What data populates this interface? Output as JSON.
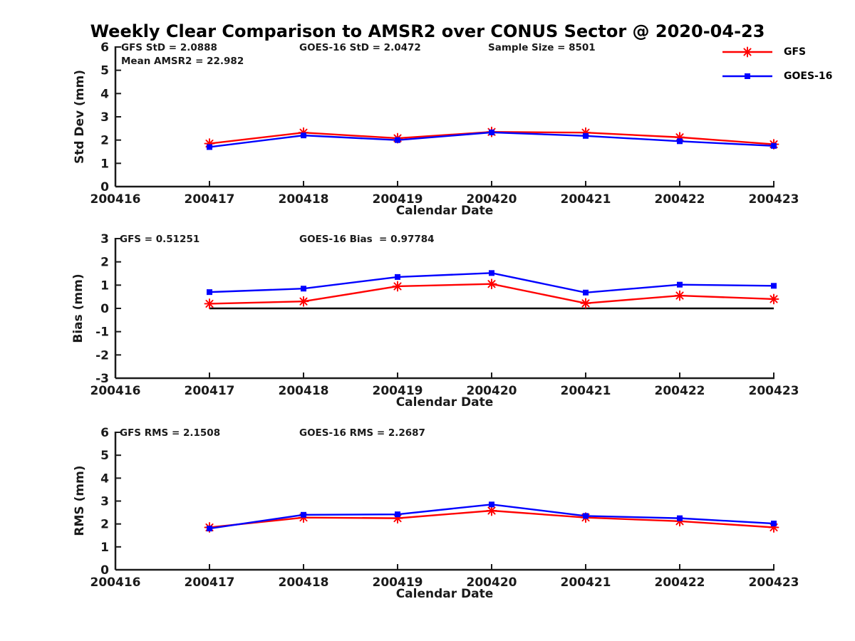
{
  "title": "Weekly Clear Comparison to AMSR2 over CONUS Sector @ 2020-04-23",
  "legend": {
    "items": [
      {
        "label": "GFS",
        "color": "#ff0000",
        "marker": "asterisk"
      },
      {
        "label": "GOES-16",
        "color": "#0000ff",
        "marker": "square"
      }
    ]
  },
  "chart_data": [
    {
      "id": "std-dev",
      "type": "line",
      "title": "",
      "x": [
        200417,
        200418,
        200419,
        200420,
        200421,
        200422,
        200423
      ],
      "xlim": [
        200416,
        200423
      ],
      "xticks": [
        200416,
        200417,
        200418,
        200419,
        200420,
        200421,
        200422,
        200423
      ],
      "xticklabels": [
        "200416",
        "200417",
        "200418",
        "200419",
        "200420",
        "200421",
        "200422",
        "200423"
      ],
      "xlabel": "Calendar Date",
      "ylabel": "Std Dev (mm)",
      "ylim": [
        0,
        6
      ],
      "yticks": [
        0,
        1,
        2,
        3,
        4,
        5,
        6
      ],
      "grid": false,
      "zero_line": false,
      "series": [
        {
          "name": "GFS",
          "color": "#ff0000",
          "marker": "asterisk",
          "values": [
            1.85,
            2.32,
            2.08,
            2.35,
            2.32,
            2.12,
            1.82
          ]
        },
        {
          "name": "GOES-16",
          "color": "#0000ff",
          "marker": "square",
          "values": [
            1.7,
            2.2,
            2.0,
            2.33,
            2.18,
            1.95,
            1.75
          ]
        }
      ],
      "annotations": {
        "left": "GFS StD = 2.0888",
        "left2": "Mean AMSR2 = 22.982",
        "mid": "GOES-16 StD = 2.0472",
        "right": "Sample Size = 8501"
      }
    },
    {
      "id": "bias",
      "type": "line",
      "title": "",
      "x": [
        200417,
        200418,
        200419,
        200420,
        200421,
        200422,
        200423
      ],
      "xlim": [
        200416,
        200423
      ],
      "xticks": [
        200416,
        200417,
        200418,
        200419,
        200420,
        200421,
        200422,
        200423
      ],
      "xticklabels": [
        "200416",
        "200417",
        "200418",
        "200419",
        "200420",
        "200421",
        "200422",
        "200423"
      ],
      "xlabel": "Calendar Date",
      "ylabel": "Bias (mm)",
      "ylim": [
        -3,
        3
      ],
      "yticks": [
        -3,
        -2,
        -1,
        0,
        1,
        2,
        3
      ],
      "grid": false,
      "zero_line": true,
      "series": [
        {
          "name": "GFS",
          "color": "#ff0000",
          "marker": "asterisk",
          "values": [
            0.2,
            0.3,
            0.95,
            1.05,
            0.22,
            0.55,
            0.4
          ]
        },
        {
          "name": "GOES-16",
          "color": "#0000ff",
          "marker": "square",
          "values": [
            0.7,
            0.85,
            1.35,
            1.52,
            0.68,
            1.02,
            0.97
          ]
        }
      ],
      "annotations": {
        "left": "GFS = 0.51251",
        "mid": "GOES-16 Bias  = 0.97784"
      }
    },
    {
      "id": "rms",
      "type": "line",
      "title": "",
      "x": [
        200417,
        200418,
        200419,
        200420,
        200421,
        200422,
        200423
      ],
      "xlim": [
        200416,
        200423
      ],
      "xticks": [
        200416,
        200417,
        200418,
        200419,
        200420,
        200421,
        200422,
        200423
      ],
      "xticklabels": [
        "200416",
        "200417",
        "200418",
        "200419",
        "200420",
        "200421",
        "200422",
        "200423"
      ],
      "xlabel": "Calendar Date",
      "ylabel": "RMS (mm)",
      "ylim": [
        0,
        6
      ],
      "yticks": [
        0,
        1,
        2,
        3,
        4,
        5,
        6
      ],
      "grid": false,
      "zero_line": false,
      "series": [
        {
          "name": "GFS",
          "color": "#ff0000",
          "marker": "asterisk",
          "values": [
            1.85,
            2.28,
            2.25,
            2.58,
            2.28,
            2.12,
            1.85
          ]
        },
        {
          "name": "GOES-16",
          "color": "#0000ff",
          "marker": "square",
          "values": [
            1.8,
            2.4,
            2.42,
            2.85,
            2.35,
            2.25,
            2.02
          ]
        }
      ],
      "annotations": {
        "left": "GFS RMS = 2.1508",
        "mid": "GOES-16 RMS = 2.2687"
      }
    }
  ]
}
